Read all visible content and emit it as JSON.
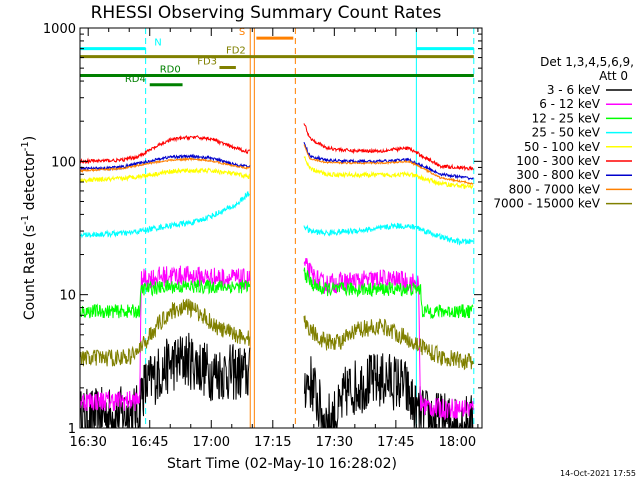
{
  "chart_data": {
    "type": "line",
    "title": "RHESSI Observing Summary Count Rates",
    "xlabel": "Start Time (02-May-10 16:28:02)",
    "ylabel": "Count Rate (s",
    "ylabel_sup1": "-1",
    "ylabel_mid": " detector",
    "ylabel_sup2": "-1",
    "ylabel_end": ")",
    "x_unit": "minutes after 16:30",
    "xlim": [
      -2,
      96
    ],
    "ylim": [
      1,
      1000
    ],
    "yscale": "log",
    "x_ticks": [
      {
        "value": 0,
        "label": "16:30"
      },
      {
        "value": 15,
        "label": "16:45"
      },
      {
        "value": 30,
        "label": "17:00"
      },
      {
        "value": 45,
        "label": "17:15"
      },
      {
        "value": 60,
        "label": "17:30"
      },
      {
        "value": 75,
        "label": "17:45"
      },
      {
        "value": 90,
        "label": "18:00"
      }
    ],
    "y_ticks": [
      {
        "value": 1,
        "label": "1"
      },
      {
        "value": 10,
        "label": "10"
      },
      {
        "value": 100,
        "label": "100"
      },
      {
        "value": 1000,
        "label": "1000"
      }
    ],
    "legend_header": [
      "Det 1,3,4,5,6,9,",
      "Att 0"
    ],
    "gap": [
      39.5,
      52.5
    ],
    "series": [
      {
        "name": "3 - 6 keV",
        "color": "#000000",
        "noise": 0.5,
        "points": [
          [
            -2,
            1.2
          ],
          [
            12.5,
            1.3
          ],
          [
            13,
            1.9
          ],
          [
            16,
            2.4
          ],
          [
            20,
            3
          ],
          [
            24,
            3.3
          ],
          [
            30,
            2.6
          ],
          [
            37,
            2.6
          ],
          [
            39,
            2.5
          ],
          [
            52.5,
            2.2
          ],
          [
            54.5,
            2.2
          ],
          [
            56.5,
            1.4
          ],
          [
            58,
            1.1
          ],
          [
            61,
            1.3
          ],
          [
            63,
            1.9
          ],
          [
            68,
            2.2
          ],
          [
            73,
            2.3
          ],
          [
            77,
            2.1
          ],
          [
            80,
            1.3
          ],
          [
            83,
            1.2
          ],
          [
            88,
            1.1
          ],
          [
            94,
            1.1
          ]
        ]
      },
      {
        "name": "6 - 12 keV",
        "color": "#ff00ff",
        "noise": 0.18,
        "points": [
          [
            -2,
            1.6
          ],
          [
            12.5,
            1.6
          ],
          [
            13,
            13
          ],
          [
            20,
            14
          ],
          [
            30,
            13.5
          ],
          [
            39,
            13
          ],
          [
            52.5,
            17
          ],
          [
            54.5,
            14
          ],
          [
            57,
            12
          ],
          [
            64,
            12.5
          ],
          [
            72,
            13
          ],
          [
            78,
            12.5
          ],
          [
            80.5,
            12
          ],
          [
            81,
            1.5
          ],
          [
            85,
            1.4
          ],
          [
            94,
            1.4
          ]
        ]
      },
      {
        "name": "12 - 25 keV",
        "color": "#00ff00",
        "noise": 0.12,
        "points": [
          [
            -2,
            7.5
          ],
          [
            12.5,
            7.5
          ],
          [
            13,
            11
          ],
          [
            20,
            11.5
          ],
          [
            30,
            11.5
          ],
          [
            39,
            11.5
          ],
          [
            52.5,
            15
          ],
          [
            54.5,
            12
          ],
          [
            57,
            11
          ],
          [
            64,
            11
          ],
          [
            72,
            11
          ],
          [
            78,
            11
          ],
          [
            81,
            11
          ],
          [
            81.5,
            7.5
          ],
          [
            94,
            7.5
          ]
        ]
      },
      {
        "name": "25 - 50 keV",
        "color": "#00ffff",
        "noise": 0.05,
        "points": [
          [
            -2,
            28
          ],
          [
            10,
            29
          ],
          [
            15,
            31
          ],
          [
            20,
            33
          ],
          [
            26,
            35
          ],
          [
            31,
            40
          ],
          [
            36,
            47
          ],
          [
            39,
            57
          ],
          [
            52.5,
            33
          ],
          [
            54,
            30
          ],
          [
            58,
            29
          ],
          [
            64,
            30
          ],
          [
            70,
            31
          ],
          [
            75,
            33
          ],
          [
            80,
            32
          ],
          [
            86,
            27
          ],
          [
            90,
            25
          ],
          [
            94,
            25
          ]
        ]
      },
      {
        "name": "50 - 100 keV",
        "color": "#ffff00",
        "noise": 0.04,
        "points": [
          [
            -2,
            72
          ],
          [
            8,
            74
          ],
          [
            12,
            77
          ],
          [
            16,
            80
          ],
          [
            20,
            84
          ],
          [
            25,
            85
          ],
          [
            30,
            85
          ],
          [
            34,
            82
          ],
          [
            39,
            77
          ],
          [
            52.5,
            110
          ],
          [
            54,
            88
          ],
          [
            58,
            80
          ],
          [
            64,
            79
          ],
          [
            72,
            79
          ],
          [
            78,
            80
          ],
          [
            80,
            77
          ],
          [
            86,
            68
          ],
          [
            94,
            64
          ]
        ]
      },
      {
        "name": "100 - 300 keV",
        "color": "#ff0000",
        "noise": 0.03,
        "points": [
          [
            -2,
            100
          ],
          [
            8,
            102
          ],
          [
            12,
            108
          ],
          [
            16,
            126
          ],
          [
            20,
            145
          ],
          [
            25,
            152
          ],
          [
            30,
            148
          ],
          [
            35,
            128
          ],
          [
            39,
            118
          ],
          [
            52.5,
            200
          ],
          [
            54,
            150
          ],
          [
            58,
            126
          ],
          [
            64,
            120
          ],
          [
            72,
            120
          ],
          [
            78,
            126
          ],
          [
            80,
            116
          ],
          [
            86,
            92
          ],
          [
            94,
            88
          ]
        ]
      },
      {
        "name": "300 - 800 keV",
        "color": "#0000cc",
        "noise": 0.025,
        "points": [
          [
            -2,
            88
          ],
          [
            8,
            90
          ],
          [
            12,
            96
          ],
          [
            16,
            102
          ],
          [
            20,
            108
          ],
          [
            25,
            109
          ],
          [
            30,
            106
          ],
          [
            35,
            96
          ],
          [
            39,
            91
          ],
          [
            52.5,
            140
          ],
          [
            54,
            110
          ],
          [
            58,
            102
          ],
          [
            64,
            100
          ],
          [
            72,
            100
          ],
          [
            78,
            103
          ],
          [
            80,
            97
          ],
          [
            86,
            80
          ],
          [
            94,
            74
          ]
        ]
      },
      {
        "name": "800 - 7000 keV",
        "color": "#ff8000",
        "noise": 0.015,
        "points": [
          [
            -2,
            85
          ],
          [
            8,
            88
          ],
          [
            12,
            93
          ],
          [
            16,
            98
          ],
          [
            20,
            102
          ],
          [
            25,
            104
          ],
          [
            30,
            101
          ],
          [
            35,
            93
          ],
          [
            39,
            89
          ],
          [
            52.5,
            135
          ],
          [
            54,
            105
          ],
          [
            58,
            98
          ],
          [
            64,
            97
          ],
          [
            72,
            97
          ],
          [
            78,
            100
          ],
          [
            80,
            94
          ],
          [
            86,
            75
          ],
          [
            94,
            68
          ]
        ]
      },
      {
        "name": "7000 - 15000 keV",
        "color": "#808000",
        "noise": 0.15,
        "points": [
          [
            -2,
            3.3
          ],
          [
            10,
            3.4
          ],
          [
            13,
            4
          ],
          [
            16,
            5.5
          ],
          [
            20,
            7.5
          ],
          [
            24,
            8.2
          ],
          [
            28,
            7
          ],
          [
            32,
            5.5
          ],
          [
            39,
            4.7
          ],
          [
            52.5,
            6.5
          ],
          [
            54,
            5.5
          ],
          [
            58,
            4.4
          ],
          [
            62,
            4.5
          ],
          [
            66,
            5.5
          ],
          [
            72,
            5.8
          ],
          [
            77,
            4.8
          ],
          [
            80,
            4.3
          ],
          [
            86,
            3.4
          ],
          [
            94,
            3.1
          ]
        ]
      }
    ],
    "state_bars": [
      {
        "label": "N",
        "color": "#00ffff",
        "y": 700,
        "x0": -2,
        "x1": 14,
        "x2": 80,
        "x3": 94,
        "label_at": 17
      },
      {
        "label": "S",
        "color": "#ff8000",
        "y": 840,
        "x0": 41,
        "x1": 50,
        "label_at": 37.5
      },
      {
        "label": "FD2",
        "color": "#808000",
        "y": 610,
        "x0": -2,
        "x1": 94,
        "label_at": 36
      },
      {
        "label": "FD3",
        "color": "#808000",
        "y": 505,
        "x0": 32,
        "x1": 36,
        "label_at": 29
      },
      {
        "label": "RD0",
        "color": "#008000",
        "y": 440,
        "x0": -2,
        "x1": 94,
        "label_at": 20
      },
      {
        "label": "RD4",
        "color": "#008000",
        "y": 375,
        "x0": 15,
        "x1": 23,
        "label_at": 11.5
      }
    ],
    "vlines": [
      {
        "x": -2,
        "color": "#00ffff",
        "style": "solid"
      },
      {
        "x": 14,
        "color": "#00ffff",
        "style": "dashed"
      },
      {
        "x": 39.5,
        "color": "#ff8000",
        "style": "solid"
      },
      {
        "x": 40.5,
        "color": "#ff8000",
        "style": "solid"
      },
      {
        "x": 50.5,
        "color": "#ff8000",
        "style": "dashed"
      },
      {
        "x": 80,
        "color": "#00ffff",
        "style": "solid"
      },
      {
        "x": 94,
        "color": "#00ffff",
        "style": "dashed"
      }
    ]
  },
  "footer": {
    "timestamp": "14-Oct-2021 17:55"
  }
}
